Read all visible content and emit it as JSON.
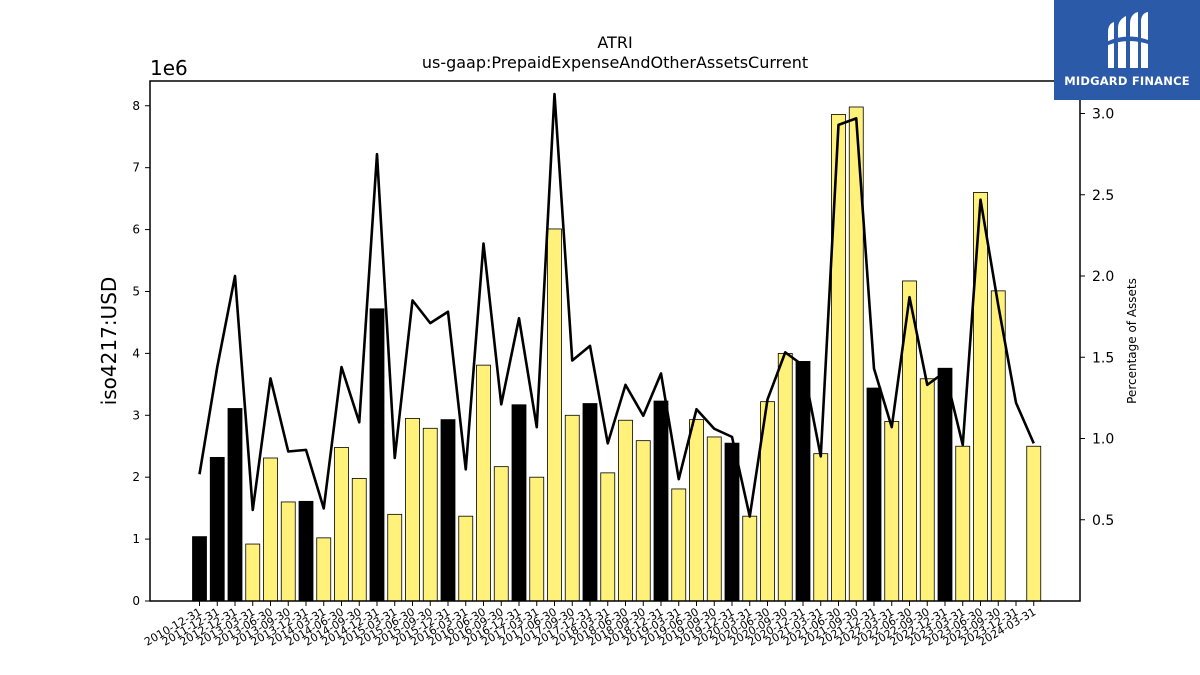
{
  "chart_data": {
    "type": "bar",
    "title": "ATRI",
    "subtitle": "us-gaap:PrepaidExpenseAndOtherAssetsCurrent",
    "ylabel": "iso4217:USD",
    "ylabel_right": "Percentage of Assets",
    "y_offset_label": "1e6",
    "ylim": [
      0,
      8.4
    ],
    "y_ticks": [
      "0",
      "1",
      "2",
      "3",
      "4",
      "5",
      "6",
      "7",
      "8"
    ],
    "y2lim": [
      0,
      3.2
    ],
    "y2_ticks": [
      "0.5",
      "1.0",
      "1.5",
      "2.0",
      "2.5",
      "3.0"
    ],
    "categories": [
      "2010-12-31",
      "2011-12-31",
      "2012-12-31",
      "2013-03-31",
      "2013-06-30",
      "2013-09-30",
      "2013-12-31",
      "2014-03-31",
      "2014-06-30",
      "2014-09-30",
      "2014-12-31",
      "2015-03-31",
      "2015-06-30",
      "2015-09-30",
      "2015-12-31",
      "2016-03-31",
      "2016-06-30",
      "2016-09-30",
      "2016-12-31",
      "2017-03-31",
      "2017-06-30",
      "2017-09-30",
      "2017-12-31",
      "2018-03-31",
      "2018-06-30",
      "2018-09-30",
      "2018-12-31",
      "2019-03-31",
      "2019-06-30",
      "2019-09-30",
      "2019-12-31",
      "2020-03-31",
      "2020-06-30",
      "2020-09-30",
      "2020-12-31",
      "2021-03-31",
      "2021-06-30",
      "2021-09-30",
      "2021-12-31",
      "2022-03-31",
      "2022-06-30",
      "2022-09-30",
      "2022-12-31",
      "2023-03-31",
      "2023-06-30",
      "2023-09-30",
      "2023-12-31",
      "2024-03-31"
    ],
    "series": [
      {
        "type": "bar",
        "unit": "millions USD",
        "values": [
          1.04,
          2.32,
          3.11,
          0.92,
          2.31,
          1.6,
          1.61,
          1.02,
          2.48,
          1.98,
          4.72,
          1.4,
          2.95,
          2.79,
          2.93,
          1.37,
          3.81,
          2.17,
          3.17,
          2.0,
          6.01,
          3.0,
          3.19,
          2.07,
          2.92,
          2.59,
          3.23,
          1.81,
          2.93,
          2.65,
          2.55,
          1.37,
          3.22,
          4.0,
          3.87,
          2.38,
          7.86,
          7.98,
          3.44,
          2.9,
          5.17,
          3.59,
          3.76,
          2.5,
          6.6,
          5.01,
          null,
          2.5
        ],
        "annual_q4": [
          true,
          true,
          true,
          false,
          false,
          false,
          true,
          false,
          false,
          false,
          true,
          false,
          false,
          false,
          true,
          false,
          false,
          false,
          true,
          false,
          false,
          false,
          true,
          false,
          false,
          false,
          true,
          false,
          false,
          false,
          true,
          false,
          false,
          false,
          true,
          false,
          false,
          false,
          true,
          false,
          false,
          false,
          true,
          false,
          false,
          false,
          true,
          false
        ]
      },
      {
        "type": "line",
        "axis": "right",
        "values": [
          0.78,
          1.44,
          2.0,
          0.56,
          1.37,
          0.92,
          0.93,
          0.57,
          1.44,
          1.1,
          2.75,
          0.88,
          1.85,
          1.71,
          1.78,
          0.81,
          2.2,
          1.21,
          1.74,
          1.07,
          3.12,
          1.48,
          1.57,
          0.97,
          1.33,
          1.14,
          1.4,
          0.75,
          1.18,
          1.06,
          1.01,
          0.52,
          1.24,
          1.53,
          1.45,
          0.89,
          2.93,
          2.97,
          1.43,
          1.07,
          1.87,
          1.33,
          1.41,
          0.96,
          2.47,
          1.82,
          1.22,
          0.97
        ]
      }
    ],
    "colors": {
      "bar_q4": "#000000",
      "bar_other": "#fff17a",
      "bar_edge": "#000000",
      "line": "#000000"
    },
    "grid": false,
    "legend": "none"
  },
  "logo": {
    "text": "MIDGARD FINANCE",
    "background": "#2b5aa8"
  }
}
